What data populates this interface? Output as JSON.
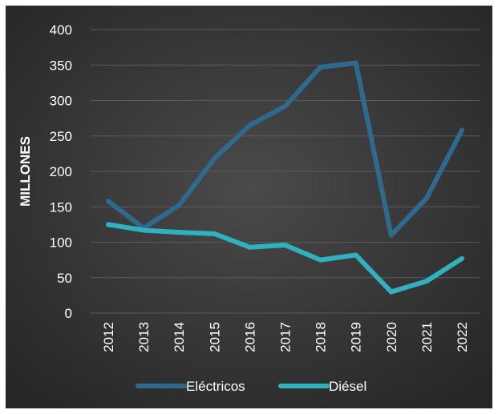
{
  "chart_data": {
    "type": "line",
    "categories": [
      "2012",
      "2013",
      "2014",
      "2015",
      "2016",
      "2017",
      "2018",
      "2019",
      "2020",
      "2021",
      "2022"
    ],
    "series": [
      {
        "name": "Eléctricos",
        "color": "#2e6a8e",
        "values": [
          158,
          120,
          152,
          218,
          265,
          292,
          347,
          353,
          110,
          162,
          258
        ]
      },
      {
        "name": "Diésel",
        "color": "#2fb1c0",
        "values": [
          125,
          117,
          114,
          112,
          93,
          96,
          75,
          82,
          30,
          45,
          77
        ]
      }
    ],
    "ylabel": "MILLONES",
    "xlabel": "",
    "ylim": [
      0,
      400
    ],
    "yticks": [
      0,
      50,
      100,
      150,
      200,
      250,
      300,
      350,
      400
    ],
    "grid": true,
    "legend_position": "bottom",
    "background": "#3f3f3f"
  }
}
